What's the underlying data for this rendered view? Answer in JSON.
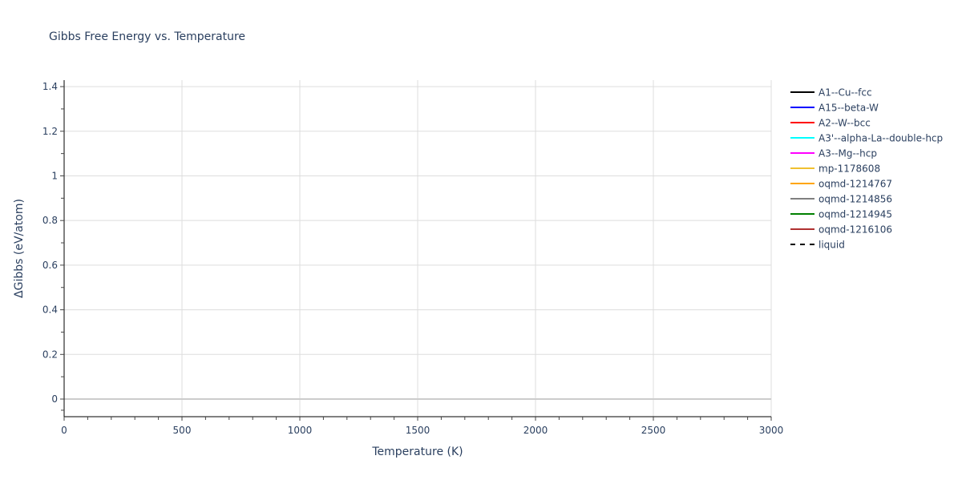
{
  "chart_data": {
    "type": "line",
    "title": "Gibbs Free Energy vs. Temperature",
    "xlabel": "Temperature (K)",
    "ylabel": "ΔGibbs (eV/atom)",
    "xlim": [
      0,
      3000
    ],
    "ylim": [
      -0.079,
      1.429
    ],
    "xticks": [
      0,
      500,
      1000,
      1500,
      2000,
      2500,
      3000
    ],
    "xtick_labels": [
      "0",
      "500",
      "1000",
      "1500",
      "2000",
      "2500",
      "3000"
    ],
    "yticks": [
      0,
      0.2,
      0.4,
      0.6,
      0.8,
      1,
      1.2,
      1.4
    ],
    "ytick_labels": [
      "0",
      "0.2",
      "0.4",
      "0.6",
      "0.8",
      "1",
      "1.2",
      "1.4"
    ],
    "grid": true,
    "legend_position": "right",
    "series": [
      {
        "name": "A1--Cu--fcc",
        "color": "#000000",
        "dash": "solid",
        "x": [],
        "y": []
      },
      {
        "name": "A15--beta-W",
        "color": "#0000ff",
        "dash": "solid",
        "x": [],
        "y": []
      },
      {
        "name": "A2--W--bcc",
        "color": "#ff0000",
        "dash": "solid",
        "x": [],
        "y": []
      },
      {
        "name": "A3'--alpha-La--double-hcp",
        "color": "#00ffff",
        "dash": "solid",
        "x": [],
        "y": []
      },
      {
        "name": "A3--Mg--hcp",
        "color": "#ff00ff",
        "dash": "solid",
        "x": [],
        "y": []
      },
      {
        "name": "mp-1178608",
        "color": "#f0c030",
        "dash": "solid",
        "x": [],
        "y": []
      },
      {
        "name": "oqmd-1214767",
        "color": "#ffa500",
        "dash": "solid",
        "x": [],
        "y": []
      },
      {
        "name": "oqmd-1214856",
        "color": "#808080",
        "dash": "solid",
        "x": [],
        "y": []
      },
      {
        "name": "oqmd-1214945",
        "color": "#008000",
        "dash": "solid",
        "x": [],
        "y": []
      },
      {
        "name": "oqmd-1216106",
        "color": "#b03030",
        "dash": "solid",
        "x": [],
        "y": []
      },
      {
        "name": "liquid",
        "color": "#000000",
        "dash": "dash",
        "x": [],
        "y": []
      }
    ]
  }
}
